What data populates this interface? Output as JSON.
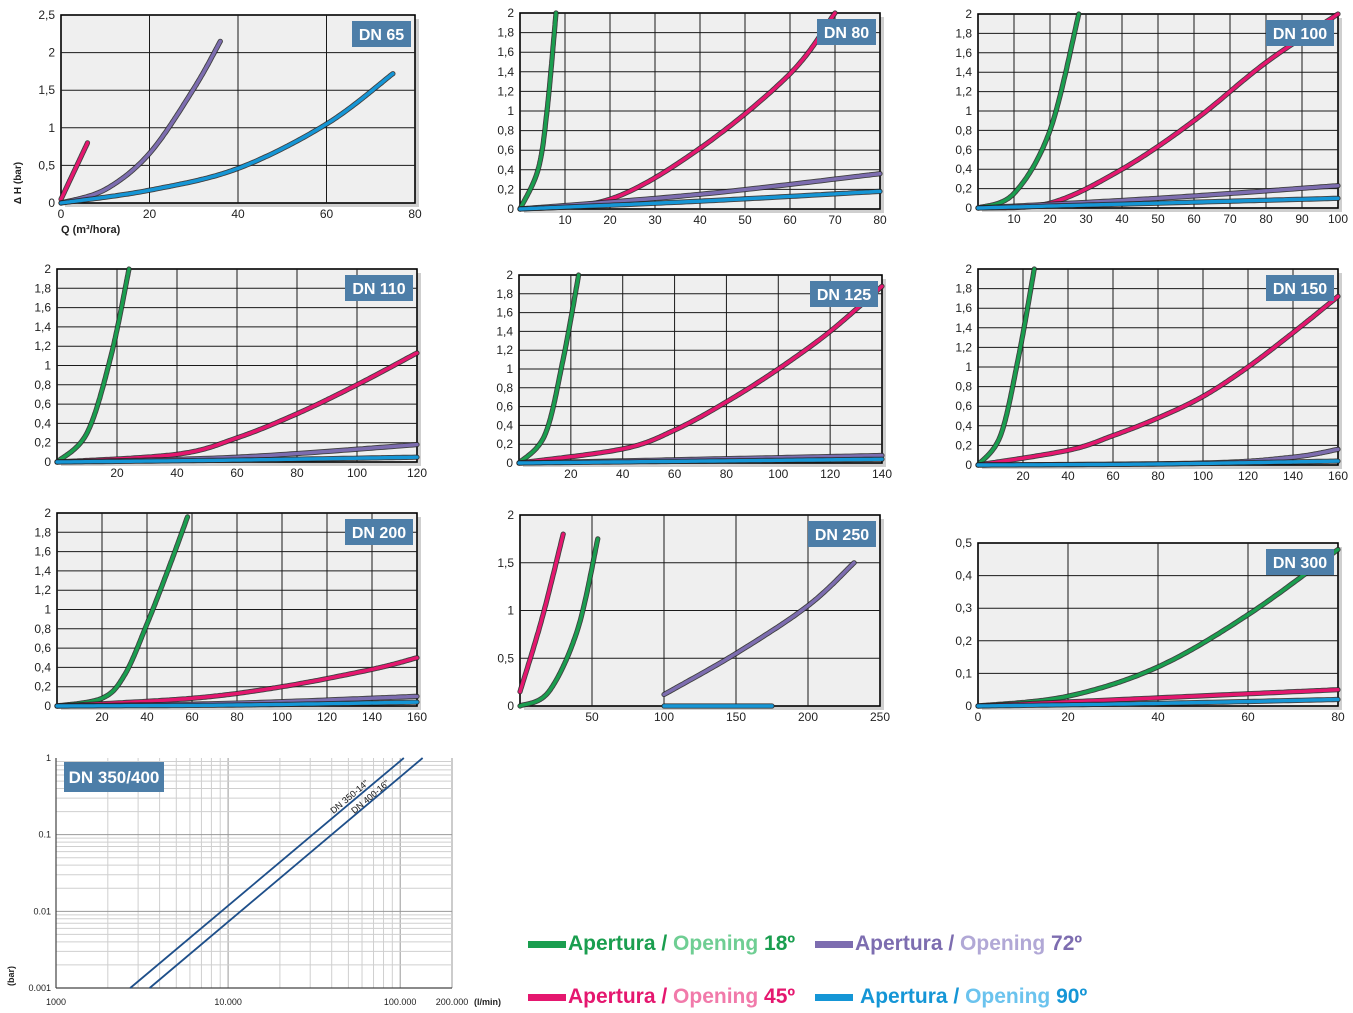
{
  "colors": {
    "open18": "#1a9e4f",
    "open45": "#e5176f",
    "open72": "#7d6db0",
    "open90": "#1596d6",
    "badge": "#4d7ea8",
    "plot_bg": "#efefef",
    "loglines": "#1e4f8a"
  },
  "legend": [
    {
      "series": "open18",
      "prefix": "Apertura / ",
      "opening": "Opening",
      "angle": "18º",
      "color": "#1a9e4f"
    },
    {
      "series": "open72",
      "prefix": "Apertura / ",
      "opening": "Opening",
      "angle": "72º",
      "color": "#7d6db0"
    },
    {
      "series": "open45",
      "prefix": "Apertura / ",
      "opening": "Opening",
      "angle": "45º",
      "color": "#e5176f"
    },
    {
      "series": "open90",
      "prefix": " Apertura / ",
      "opening": "Opening",
      "angle": "90º",
      "color": "#1596d6"
    }
  ],
  "chart_data": [
    {
      "type": "line",
      "title": "DN 65",
      "xlabel": "Q (m³/hora)",
      "ylabel": "Δ H (bar)",
      "xlim": [
        0,
        80
      ],
      "ylim": [
        0,
        2.5
      ],
      "x_ticks": [
        "0",
        "20",
        "40",
        "60",
        "80"
      ],
      "y_ticks": [
        "0",
        "0,5",
        "1",
        "1,5",
        "2",
        "2,5"
      ],
      "grid": true,
      "series": [
        {
          "name": "open45",
          "points": [
            [
              0,
              0.05
            ],
            [
              2,
              0.3
            ],
            [
              4,
              0.55
            ],
            [
              6,
              0.8
            ]
          ]
        },
        {
          "name": "open72",
          "points": [
            [
              0,
              0
            ],
            [
              10,
              0.18
            ],
            [
              20,
              0.66
            ],
            [
              30,
              1.52
            ],
            [
              36,
              2.15
            ]
          ]
        },
        {
          "name": "open90",
          "points": [
            [
              0,
              0
            ],
            [
              20,
              0.17
            ],
            [
              40,
              0.46
            ],
            [
              60,
              1.05
            ],
            [
              75,
              1.72
            ]
          ]
        }
      ]
    },
    {
      "type": "line",
      "title": "DN 80",
      "xlim": [
        0,
        80
      ],
      "ylim": [
        0,
        2
      ],
      "x_ticks": [
        "10",
        "20",
        "30",
        "40",
        "50",
        "60",
        "70",
        "80"
      ],
      "y_ticks": [
        "0",
        "0,2",
        "0,4",
        "0,6",
        "0,8",
        "1",
        "1,2",
        "1,4",
        "1,6",
        "1,8",
        "2"
      ],
      "grid": true,
      "series": [
        {
          "name": "open18",
          "points": [
            [
              0,
              0
            ],
            [
              4,
              0.4
            ],
            [
              6,
              1.0
            ],
            [
              8,
              2.0
            ]
          ]
        },
        {
          "name": "open45",
          "points": [
            [
              0,
              0
            ],
            [
              20,
              0.1
            ],
            [
              40,
              0.62
            ],
            [
              60,
              1.38
            ],
            [
              70,
              2.0
            ]
          ]
        },
        {
          "name": "open72",
          "points": [
            [
              0,
              0
            ],
            [
              40,
              0.15
            ],
            [
              80,
              0.36
            ]
          ]
        },
        {
          "name": "open90",
          "points": [
            [
              0,
              0
            ],
            [
              40,
              0.08
            ],
            [
              80,
              0.18
            ]
          ]
        }
      ]
    },
    {
      "type": "line",
      "title": "DN 100",
      "xlim": [
        0,
        100
      ],
      "ylim": [
        0,
        2
      ],
      "x_ticks": [
        "10",
        "20",
        "30",
        "40",
        "50",
        "60",
        "70",
        "80",
        "90",
        "100"
      ],
      "y_ticks": [
        "0",
        "0,2",
        "0,4",
        "0,6",
        "0,8",
        "1",
        "1,2",
        "1,4",
        "1,6",
        "1,8",
        "2"
      ],
      "grid": true,
      "series": [
        {
          "name": "open18",
          "points": [
            [
              0,
              0
            ],
            [
              10,
              0.15
            ],
            [
              20,
              0.8
            ],
            [
              28,
              2.0
            ]
          ]
        },
        {
          "name": "open45",
          "points": [
            [
              0,
              0
            ],
            [
              20,
              0.05
            ],
            [
              40,
              0.4
            ],
            [
              60,
              0.9
            ],
            [
              80,
              1.5
            ],
            [
              100,
              2.0
            ]
          ]
        },
        {
          "name": "open72",
          "points": [
            [
              0,
              0
            ],
            [
              50,
              0.1
            ],
            [
              100,
              0.23
            ]
          ]
        },
        {
          "name": "open90",
          "points": [
            [
              0,
              0
            ],
            [
              50,
              0.05
            ],
            [
              100,
              0.1
            ]
          ]
        }
      ]
    },
    {
      "type": "line",
      "title": "DN 110",
      "xlim": [
        0,
        120
      ],
      "ylim": [
        0,
        2
      ],
      "x_ticks": [
        "20",
        "40",
        "60",
        "80",
        "100",
        "120"
      ],
      "y_ticks": [
        "0",
        "0,2",
        "0,4",
        "0,6",
        "0,8",
        "1",
        "1,2",
        "1,4",
        "1,6",
        "1,8",
        "2"
      ],
      "grid": true,
      "series": [
        {
          "name": "open18",
          "points": [
            [
              0,
              0
            ],
            [
              10,
              0.3
            ],
            [
              18,
              1.1
            ],
            [
              24,
              2.0
            ]
          ]
        },
        {
          "name": "open45",
          "points": [
            [
              0,
              0
            ],
            [
              40,
              0.08
            ],
            [
              60,
              0.25
            ],
            [
              80,
              0.5
            ],
            [
              100,
              0.8
            ],
            [
              120,
              1.13
            ]
          ]
        },
        {
          "name": "open72",
          "points": [
            [
              0,
              0
            ],
            [
              60,
              0.05
            ],
            [
              120,
              0.18
            ]
          ]
        },
        {
          "name": "open90",
          "points": [
            [
              0,
              0
            ],
            [
              60,
              0.02
            ],
            [
              120,
              0.05
            ]
          ]
        }
      ]
    },
    {
      "type": "line",
      "title": "DN 125",
      "xlim": [
        0,
        140
      ],
      "ylim": [
        0,
        2
      ],
      "x_ticks": [
        "20",
        "40",
        "60",
        "80",
        "100",
        "120",
        "140"
      ],
      "y_ticks": [
        "0",
        "0,2",
        "0,4",
        "0,6",
        "0,8",
        "1",
        "1,2",
        "1,4",
        "1,6",
        "1,8",
        "2"
      ],
      "grid": true,
      "series": [
        {
          "name": "open18",
          "points": [
            [
              0,
              0
            ],
            [
              10,
              0.3
            ],
            [
              17,
              1.1
            ],
            [
              23,
              2.0
            ]
          ]
        },
        {
          "name": "open45",
          "points": [
            [
              0,
              0
            ],
            [
              40,
              0.15
            ],
            [
              60,
              0.35
            ],
            [
              80,
              0.65
            ],
            [
              100,
              1.0
            ],
            [
              120,
              1.4
            ],
            [
              140,
              1.88
            ]
          ]
        },
        {
          "name": "open72",
          "points": [
            [
              0,
              0
            ],
            [
              70,
              0.04
            ],
            [
              140,
              0.08
            ]
          ]
        },
        {
          "name": "open90",
          "points": [
            [
              0,
              0
            ],
            [
              70,
              0.02
            ],
            [
              140,
              0.04
            ]
          ]
        }
      ]
    },
    {
      "type": "line",
      "title": "DN 150",
      "xlim": [
        0,
        160
      ],
      "ylim": [
        0,
        2
      ],
      "x_ticks": [
        "20",
        "40",
        "60",
        "80",
        "100",
        "120",
        "140",
        "160"
      ],
      "y_ticks": [
        "0",
        "0,2",
        "0,4",
        "0,6",
        "0,8",
        "1",
        "1,2",
        "1,4",
        "1,6",
        "1,8",
        "2"
      ],
      "grid": true,
      "series": [
        {
          "name": "open18",
          "points": [
            [
              0,
              0
            ],
            [
              10,
              0.3
            ],
            [
              18,
              1.1
            ],
            [
              25,
              2.0
            ]
          ]
        },
        {
          "name": "open45",
          "points": [
            [
              0,
              0
            ],
            [
              40,
              0.15
            ],
            [
              60,
              0.3
            ],
            [
              80,
              0.48
            ],
            [
              100,
              0.7
            ],
            [
              120,
              1.0
            ],
            [
              140,
              1.35
            ],
            [
              160,
              1.72
            ]
          ]
        },
        {
          "name": "open72",
          "points": [
            [
              0,
              0
            ],
            [
              100,
              0.02
            ],
            [
              140,
              0.08
            ],
            [
              160,
              0.16
            ]
          ]
        },
        {
          "name": "open90",
          "points": [
            [
              0,
              0
            ],
            [
              80,
              0.01
            ],
            [
              160,
              0.04
            ]
          ]
        }
      ]
    },
    {
      "type": "line",
      "title": "DN 200",
      "xlim": [
        0,
        160
      ],
      "ylim": [
        0,
        2
      ],
      "x_ticks": [
        "20",
        "40",
        "60",
        "80",
        "100",
        "120",
        "140",
        "160"
      ],
      "y_ticks": [
        "0",
        "0,2",
        "0,4",
        "0,6",
        "0,8",
        "1",
        "1,2",
        "1,4",
        "1,6",
        "1,8",
        "2"
      ],
      "grid": true,
      "series": [
        {
          "name": "open18",
          "points": [
            [
              0,
              0
            ],
            [
              20,
              0.08
            ],
            [
              30,
              0.32
            ],
            [
              40,
              0.85
            ],
            [
              50,
              1.45
            ],
            [
              58,
              1.96
            ]
          ]
        },
        {
          "name": "open45",
          "points": [
            [
              0,
              0
            ],
            [
              60,
              0.08
            ],
            [
              100,
              0.2
            ],
            [
              140,
              0.38
            ],
            [
              160,
              0.5
            ]
          ]
        },
        {
          "name": "open72",
          "points": [
            [
              0,
              0
            ],
            [
              80,
              0.03
            ],
            [
              160,
              0.1
            ]
          ]
        },
        {
          "name": "open90",
          "points": [
            [
              0,
              0
            ],
            [
              80,
              0.01
            ],
            [
              160,
              0.04
            ]
          ]
        }
      ]
    },
    {
      "type": "line",
      "title": "DN 250",
      "xlim": [
        0,
        250
      ],
      "ylim": [
        0,
        2
      ],
      "x_ticks": [
        "50",
        "100",
        "150",
        "200",
        "250"
      ],
      "y_ticks": [
        "0",
        "0,5",
        "1",
        "1,5",
        "2"
      ],
      "grid": true,
      "series": [
        {
          "name": "open45",
          "points": [
            [
              0,
              0.15
            ],
            [
              15,
              0.9
            ],
            [
              30,
              1.8
            ]
          ]
        },
        {
          "name": "open18",
          "points": [
            [
              0,
              0
            ],
            [
              20,
              0.15
            ],
            [
              40,
              0.8
            ],
            [
              54,
              1.75
            ]
          ]
        },
        {
          "name": "open72",
          "points": [
            [
              100,
              0.12
            ],
            [
              150,
              0.55
            ],
            [
              200,
              1.05
            ],
            [
              232,
              1.5
            ]
          ]
        },
        {
          "name": "open90",
          "points": [
            [
              100,
              0
            ],
            [
              175,
              0
            ]
          ]
        }
      ]
    },
    {
      "type": "line",
      "title": "DN 300",
      "xlim": [
        0,
        80
      ],
      "ylim": [
        0,
        0.5
      ],
      "x_ticks": [
        "0",
        "20",
        "40",
        "60",
        "80"
      ],
      "y_ticks": [
        "0",
        "0,1",
        "0,2",
        "0,3",
        "0,4",
        "0,5"
      ],
      "grid": true,
      "series": [
        {
          "name": "open18",
          "points": [
            [
              0,
              0
            ],
            [
              20,
              0.03
            ],
            [
              40,
              0.12
            ],
            [
              60,
              0.28
            ],
            [
              80,
              0.48
            ]
          ]
        },
        {
          "name": "open45",
          "points": [
            [
              0,
              0
            ],
            [
              40,
              0.025
            ],
            [
              80,
              0.05
            ]
          ]
        },
        {
          "name": "open90",
          "points": [
            [
              0,
              0
            ],
            [
              40,
              0.008
            ],
            [
              80,
              0.02
            ]
          ]
        }
      ]
    },
    {
      "type": "line",
      "title": "DN 350/400",
      "xscale": "log",
      "yscale": "log",
      "xlabel": "(l/min)",
      "ylabel": "(bar)",
      "xlim": [
        1000,
        200000
      ],
      "ylim": [
        0.001,
        1
      ],
      "x_ticks": [
        "1000",
        "10.000",
        "100.000",
        "200.000"
      ],
      "y_ticks": [
        "0.001",
        "0.01",
        "0.1",
        "1"
      ],
      "grid": true,
      "series": [
        {
          "name": "DN 350-14\"",
          "points": [
            [
              2700,
              0.001
            ],
            [
              105000,
              1
            ]
          ]
        },
        {
          "name": "DN 400-16\"",
          "points": [
            [
              3500,
              0.001
            ],
            [
              135000,
              1
            ]
          ]
        }
      ]
    }
  ]
}
